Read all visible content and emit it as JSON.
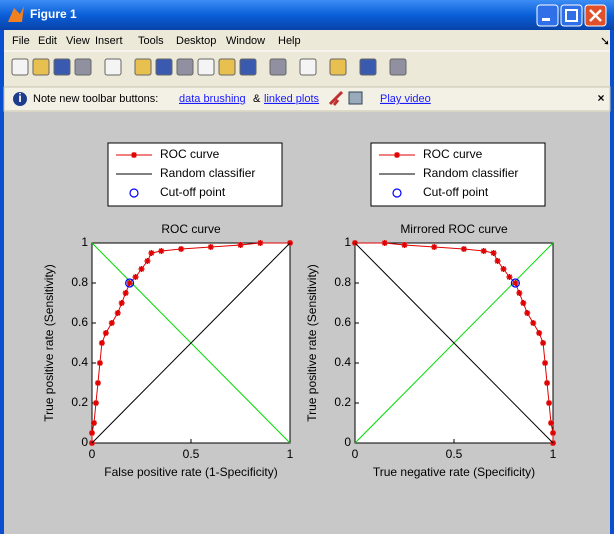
{
  "window": {
    "title": "Figure 1",
    "menu": [
      "File",
      "Edit",
      "View",
      "Insert",
      "Tools",
      "Desktop",
      "Window",
      "Help"
    ],
    "info_bar": {
      "note": "Note new toolbar buttons:",
      "link_1": "data brushing",
      "separator": "&",
      "link_2": "linked plots",
      "link_3": "Play video",
      "close": "×"
    }
  },
  "chart_data": [
    {
      "type": "line",
      "title": "ROC curve",
      "xlabel": "False positive rate (1-Specificity)",
      "ylabel": "True positive rate (Sensitivity)",
      "xlim": [
        0,
        1
      ],
      "ylim": [
        0,
        1
      ],
      "xticks": [
        0,
        0.5,
        1
      ],
      "yticks": [
        0,
        0.2,
        0.4,
        0.6,
        0.8,
        1
      ],
      "series": [
        {
          "name": "ROC curve",
          "color": "#e00000",
          "marker": "*",
          "line": true,
          "x": [
            0,
            0,
            0.01,
            0.02,
            0.03,
            0.04,
            0.05,
            0.07,
            0.1,
            0.13,
            0.15,
            0.17,
            0.19,
            0.22,
            0.25,
            0.28,
            0.3,
            0.35,
            0.45,
            0.6,
            0.75,
            0.85,
            1
          ],
          "values": [
            0,
            0.05,
            0.1,
            0.2,
            0.3,
            0.4,
            0.5,
            0.55,
            0.6,
            0.65,
            0.7,
            0.75,
            0.8,
            0.83,
            0.87,
            0.91,
            0.95,
            0.96,
            0.97,
            0.98,
            0.99,
            1,
            1
          ]
        },
        {
          "name": "Random classifier",
          "color": "#000000",
          "marker": null,
          "line": true,
          "x": [
            0,
            1
          ],
          "values": [
            0,
            1
          ]
        },
        {
          "name": "Cut-off point",
          "color": "#0000ff",
          "marker": "o",
          "line": false,
          "x": [
            0.19
          ],
          "values": [
            0.8
          ]
        }
      ],
      "reference_line": {
        "color": "#00dd00",
        "x": [
          0,
          1
        ],
        "values": [
          1,
          0
        ]
      }
    },
    {
      "type": "line",
      "title": "Mirrored ROC curve",
      "xlabel": "True negative rate (Specificity)",
      "ylabel": "True positive rate (Sensitivity)",
      "xlim": [
        0,
        1
      ],
      "ylim": [
        0,
        1
      ],
      "xticks": [
        0,
        0.5,
        1
      ],
      "yticks": [
        0,
        0.2,
        0.4,
        0.6,
        0.8,
        1
      ],
      "series": [
        {
          "name": "ROC curve",
          "color": "#e00000",
          "marker": "*",
          "line": true,
          "x": [
            1,
            1,
            0.99,
            0.98,
            0.97,
            0.96,
            0.95,
            0.93,
            0.9,
            0.87,
            0.85,
            0.83,
            0.81,
            0.78,
            0.75,
            0.72,
            0.7,
            0.65,
            0.55,
            0.4,
            0.25,
            0.15,
            0
          ],
          "values": [
            0,
            0.05,
            0.1,
            0.2,
            0.3,
            0.4,
            0.5,
            0.55,
            0.6,
            0.65,
            0.7,
            0.75,
            0.8,
            0.83,
            0.87,
            0.91,
            0.95,
            0.96,
            0.97,
            0.98,
            0.99,
            1,
            1
          ]
        },
        {
          "name": "Random classifier",
          "color": "#000000",
          "marker": null,
          "line": true,
          "x": [
            0,
            1
          ],
          "values": [
            1,
            0
          ]
        },
        {
          "name": "Cut-off point",
          "color": "#0000ff",
          "marker": "o",
          "line": false,
          "x": [
            0.81
          ],
          "values": [
            0.8
          ]
        }
      ],
      "reference_line": {
        "color": "#00dd00",
        "x": [
          0,
          1
        ],
        "values": [
          0,
          1
        ]
      }
    }
  ]
}
